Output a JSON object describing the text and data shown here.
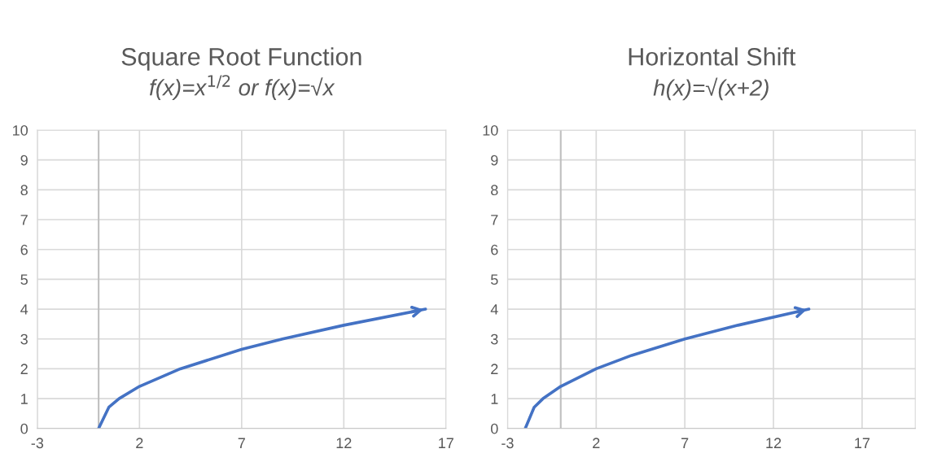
{
  "chart_data": [
    {
      "type": "line",
      "title": "Square Root Function",
      "subtitle": "f(x)=x$^{1/2}$ or f(x)=√x",
      "series": [
        {
          "color": "#4472c4",
          "x": [
            0,
            0.5,
            1,
            2,
            4,
            7,
            9,
            12,
            16
          ],
          "values": [
            0,
            0.71,
            1,
            1.41,
            2,
            2.65,
            3,
            3.46,
            4
          ]
        }
      ],
      "xlim": [
        -3,
        17
      ],
      "xticks": [
        -3,
        2,
        7,
        12,
        17
      ],
      "ylim": [
        0,
        10
      ],
      "yticks": [
        0,
        1,
        2,
        3,
        4,
        5,
        6,
        7,
        8,
        9,
        10
      ],
      "ref_lines": [
        {
          "axis": "x",
          "value": 0,
          "color": "#bfbfbf"
        }
      ],
      "grid": true,
      "marker": "none",
      "line_style": "solid",
      "legend": false
    },
    {
      "type": "line",
      "title": "Horizontal Shift",
      "subtitle": "h(x)=√(x+2)",
      "series": [
        {
          "color": "#4472c4",
          "x": [
            -2,
            -1.5,
            -1,
            0,
            2,
            4,
            7,
            10,
            14
          ],
          "values": [
            0,
            0.71,
            1,
            1.41,
            2,
            2.45,
            3,
            3.46,
            4
          ]
        }
      ],
      "xlim": [
        -3,
        20
      ],
      "xticks": [
        -3,
        2,
        7,
        12,
        17
      ],
      "ylim": [
        0,
        10
      ],
      "yticks": [
        0,
        1,
        2,
        3,
        4,
        5,
        6,
        7,
        8,
        9,
        10
      ],
      "ref_lines": [
        {
          "axis": "x",
          "value": 0,
          "color": "#bfbfbf"
        }
      ],
      "grid": true,
      "marker": "none",
      "line_style": "solid",
      "legend": false
    }
  ]
}
